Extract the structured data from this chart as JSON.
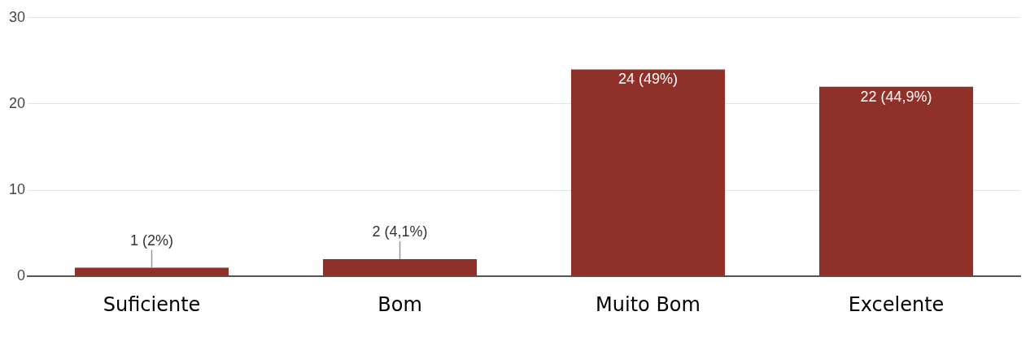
{
  "chart_data": {
    "type": "bar",
    "categories": [
      "Suficiente",
      "Bom",
      "Muito Bom",
      "Excelente"
    ],
    "values": [
      1,
      2,
      24,
      22
    ],
    "color": "#8f3029",
    "value_labels": [
      "1 (2%)",
      "2 (4,1%)",
      "24 (49%)",
      "22 (44,9%)"
    ],
    "ylim": [
      0,
      30
    ],
    "yticks": [
      0,
      10,
      20,
      30
    ],
    "grid": "y",
    "legend": false
  }
}
